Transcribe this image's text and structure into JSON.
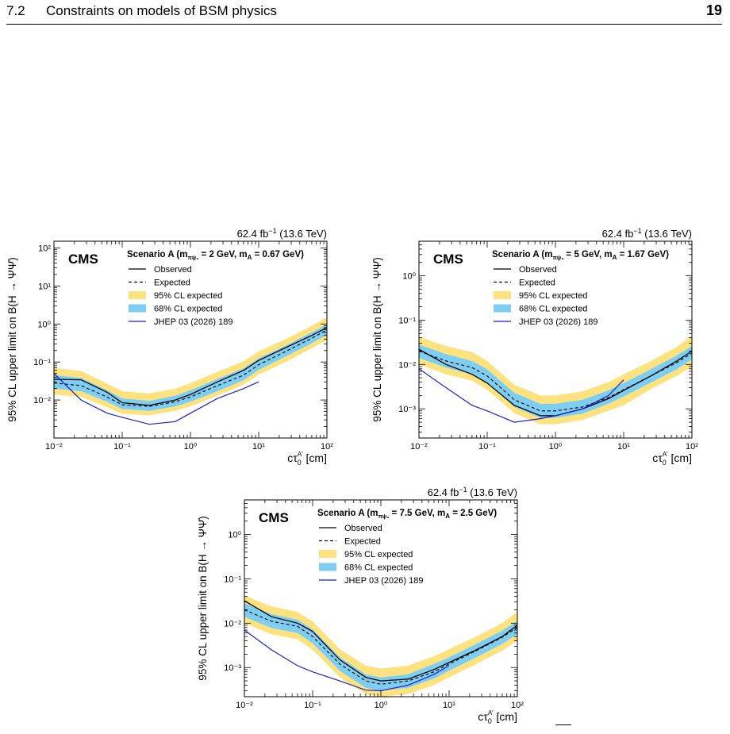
{
  "header": {
    "section_number": "7.2",
    "section_title": "Constraints on models of BSM physics",
    "page_number": "19"
  },
  "legend_labels": {
    "cms": "CMS",
    "observed": "Observed",
    "expected": "Expected",
    "cl95": "95% CL expected",
    "cl68": "68% CL expected",
    "ref": "JHEP 03 (2026) 189"
  },
  "colors": {
    "band95": "#fde27f",
    "band68": "#7ecdf3",
    "observed": "#000000",
    "expected": "#000000",
    "ref": "#1f1fc8"
  },
  "chart_data": [
    {
      "type": "line",
      "lumi": "62.4 fb",
      "lumi_exp": "−1",
      "energy": "(13.6 TeV)",
      "scenario": "Scenario A",
      "mass_text": "2 GeV, m",
      "mass_a": "A",
      "mass_tail": " = 0.67 GeV)",
      "ylabel": "95% CL upper limit on B(H → ΨΨ̄)",
      "xlabel": "cτ0A′ [cm]",
      "x_log": true,
      "y_log": true,
      "xlim": [
        0.01,
        100
      ],
      "ylim": [
        0.001,
        150
      ],
      "x_ticks": [
        "10⁻²",
        "10⁻¹",
        "10⁰",
        "10¹",
        "10²"
      ],
      "y_ticks": [
        "10⁻²",
        "10⁻¹",
        "10⁰",
        "10¹",
        "10²"
      ],
      "y_tick_values": [
        0.01,
        0.1,
        1,
        10,
        100
      ],
      "x": [
        0.01,
        0.025,
        0.06,
        0.1,
        0.25,
        0.6,
        1,
        2.5,
        6,
        10,
        25,
        60,
        100
      ],
      "observed": [
        0.035,
        0.034,
        0.016,
        0.0085,
        0.0072,
        0.01,
        0.014,
        0.03,
        0.06,
        0.11,
        0.24,
        0.5,
        0.8
      ],
      "expected": [
        0.028,
        0.024,
        0.012,
        0.0075,
        0.0068,
        0.009,
        0.012,
        0.024,
        0.045,
        0.085,
        0.19,
        0.42,
        0.7
      ],
      "band68_low": [
        0.02,
        0.017,
        0.009,
        0.0058,
        0.0052,
        0.0068,
        0.009,
        0.017,
        0.033,
        0.062,
        0.14,
        0.31,
        0.52
      ],
      "band68_high": [
        0.045,
        0.038,
        0.018,
        0.011,
        0.0095,
        0.013,
        0.018,
        0.036,
        0.068,
        0.125,
        0.27,
        0.6,
        0.97
      ],
      "band95_low": [
        0.014,
        0.012,
        0.0065,
        0.0043,
        0.004,
        0.0052,
        0.0068,
        0.013,
        0.025,
        0.047,
        0.1,
        0.23,
        0.38
      ],
      "band95_high": [
        0.07,
        0.058,
        0.027,
        0.017,
        0.015,
        0.02,
        0.028,
        0.055,
        0.105,
        0.19,
        0.4,
        0.9,
        1.5
      ],
      "ref_x": [
        0.01,
        0.025,
        0.06,
        0.1,
        0.25,
        0.6,
        1,
        2.5,
        6,
        10
      ],
      "ref_y": [
        0.05,
        0.01,
        0.0045,
        0.0035,
        0.0023,
        0.0027,
        0.0045,
        0.011,
        0.02,
        0.03
      ]
    },
    {
      "type": "line",
      "lumi": "62.4 fb",
      "lumi_exp": "−1",
      "energy": "(13.6 TeV)",
      "scenario": "Scenario A",
      "mass_text": "5 GeV, m",
      "mass_a": "A",
      "mass_tail": " = 1.67 GeV)",
      "ylabel": "95% CL upper limit on B(H → ΨΨ̄)",
      "xlabel": "cτ0A′ [cm]",
      "x_log": true,
      "y_log": true,
      "xlim": [
        0.01,
        100
      ],
      "ylim": [
        0.00022,
        6
      ],
      "x_ticks": [
        "10⁻²",
        "10⁻¹",
        "10⁰",
        "10¹",
        "10²"
      ],
      "y_ticks": [
        "10⁻³",
        "10⁻²",
        "10⁻¹",
        "10⁰"
      ],
      "y_tick_values": [
        0.001,
        0.01,
        0.1,
        1
      ],
      "x": [
        0.01,
        0.025,
        0.06,
        0.1,
        0.25,
        0.6,
        1,
        2.5,
        6,
        10,
        25,
        60,
        100
      ],
      "observed": [
        0.022,
        0.01,
        0.006,
        0.0038,
        0.0012,
        0.0007,
        0.0007,
        0.001,
        0.0017,
        0.0026,
        0.0055,
        0.012,
        0.02
      ],
      "expected": [
        0.02,
        0.012,
        0.0085,
        0.0055,
        0.0016,
        0.0009,
        0.0009,
        0.0011,
        0.0018,
        0.0027,
        0.0055,
        0.011,
        0.018
      ],
      "band68_low": [
        0.014,
        0.0085,
        0.006,
        0.0038,
        0.0011,
        0.00063,
        0.00063,
        0.00078,
        0.0013,
        0.0019,
        0.0039,
        0.0078,
        0.013
      ],
      "band68_high": [
        0.028,
        0.017,
        0.012,
        0.0078,
        0.0023,
        0.0013,
        0.0013,
        0.0016,
        0.0026,
        0.0038,
        0.0078,
        0.016,
        0.026
      ],
      "band95_low": [
        0.01,
        0.006,
        0.0043,
        0.0027,
        0.0008,
        0.00045,
        0.00045,
        0.00056,
        0.0009,
        0.0012,
        0.0028,
        0.0055,
        0.009
      ],
      "band95_high": [
        0.042,
        0.026,
        0.019,
        0.012,
        0.0035,
        0.002,
        0.002,
        0.0025,
        0.004,
        0.006,
        0.012,
        0.025,
        0.045
      ],
      "ref_x": [
        0.01,
        0.025,
        0.06,
        0.1,
        0.25,
        0.6,
        1,
        2.5,
        6,
        10
      ],
      "ref_y": [
        0.008,
        0.003,
        0.0012,
        0.0009,
        0.0005,
        0.0006,
        0.0007,
        0.001,
        0.002,
        0.0045
      ]
    },
    {
      "type": "line",
      "lumi": "62.4 fb",
      "lumi_exp": "−1",
      "energy": "(13.6 TeV)",
      "scenario": "Scenario A",
      "mass_text": "7.5 GeV, m",
      "mass_a": "A",
      "mass_tail": " = 2.5 GeV)",
      "ylabel": "95% CL upper limit on B(H → ΨΨ̄)",
      "xlabel": "cτ0A′ [cm]",
      "x_log": true,
      "y_log": true,
      "xlim": [
        0.01,
        100
      ],
      "ylim": [
        0.00022,
        6
      ],
      "x_ticks": [
        "10⁻²",
        "10⁻¹",
        "10⁰",
        "10¹",
        "10²"
      ],
      "y_ticks": [
        "10⁻³",
        "10⁻²",
        "10⁻¹",
        "10⁰"
      ],
      "y_tick_values": [
        0.001,
        0.01,
        0.1,
        1
      ],
      "x": [
        0.01,
        0.025,
        0.06,
        0.1,
        0.25,
        0.6,
        1,
        2.5,
        6,
        10,
        25,
        60,
        100
      ],
      "observed": [
        0.032,
        0.014,
        0.01,
        0.0065,
        0.0015,
        0.0006,
        0.0005,
        0.00055,
        0.0009,
        0.0013,
        0.0025,
        0.005,
        0.009
      ],
      "expected": [
        0.02,
        0.011,
        0.0085,
        0.005,
        0.0012,
        0.0005,
        0.00042,
        0.0005,
        0.0008,
        0.0012,
        0.0024,
        0.0048,
        0.008
      ],
      "band68_low": [
        0.014,
        0.0078,
        0.006,
        0.0035,
        0.00085,
        0.00035,
        0.0003,
        0.00035,
        0.00056,
        0.00085,
        0.0017,
        0.0034,
        0.0056
      ],
      "band68_high": [
        0.028,
        0.016,
        0.012,
        0.0072,
        0.0017,
        0.0007,
        0.0006,
        0.0007,
        0.0012,
        0.0017,
        0.0034,
        0.0068,
        0.011
      ],
      "band95_low": [
        0.01,
        0.0056,
        0.0043,
        0.0025,
        0.0006,
        0.00025,
        0.00022,
        0.00025,
        0.0004,
        0.0006,
        0.0012,
        0.0024,
        0.004
      ],
      "band95_high": [
        0.042,
        0.024,
        0.018,
        0.011,
        0.0026,
        0.0011,
        0.00095,
        0.0011,
        0.0018,
        0.0026,
        0.005,
        0.01,
        0.018
      ],
      "ref_x": [
        0.01,
        0.025,
        0.06,
        0.1,
        0.25,
        0.6,
        1,
        2.5,
        6,
        10
      ],
      "ref_y": [
        0.007,
        0.0025,
        0.0011,
        0.0008,
        0.0005,
        0.00031,
        0.0003,
        0.0004,
        0.0007,
        0.0011
      ]
    }
  ]
}
